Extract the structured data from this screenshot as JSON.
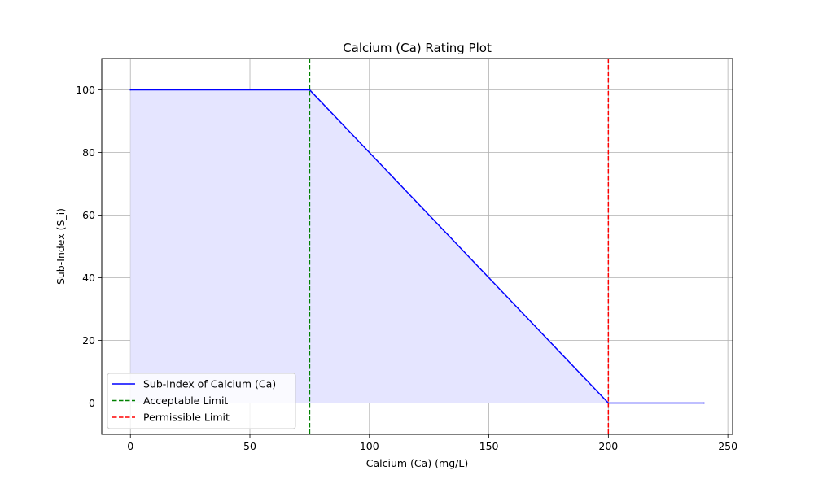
{
  "chart_data": {
    "type": "line",
    "title": "Calcium (Ca) Rating Plot",
    "xlabel": "Calcium (Ca) (mg/L)",
    "ylabel": "Sub-Index (S_i)",
    "xlim": [
      -12,
      252
    ],
    "ylim": [
      -10,
      110
    ],
    "xticks": [
      0,
      50,
      100,
      150,
      200,
      250
    ],
    "yticks": [
      0,
      20,
      40,
      60,
      80,
      100
    ],
    "xtick_labels": [
      "0",
      "50",
      "100",
      "150",
      "200",
      "250"
    ],
    "ytick_labels": [
      "0",
      "20",
      "40",
      "60",
      "80",
      "100"
    ],
    "grid": true,
    "legend_position": "lower-left",
    "series": [
      {
        "name": "Sub-Index of Calcium (Ca)",
        "color": "#0000ff",
        "style": "solid",
        "x": [
          0,
          75,
          200,
          240
        ],
        "y": [
          100,
          100,
          0,
          0
        ],
        "fill_to_zero": true,
        "fill_color": "#e5e5ff"
      }
    ],
    "reference_lines": [
      {
        "name": "Acceptable Limit",
        "x": 75,
        "color": "#008000",
        "style": "dashed"
      },
      {
        "name": "Permissible Limit",
        "x": 200,
        "color": "#ff0000",
        "style": "dashed"
      }
    ]
  }
}
